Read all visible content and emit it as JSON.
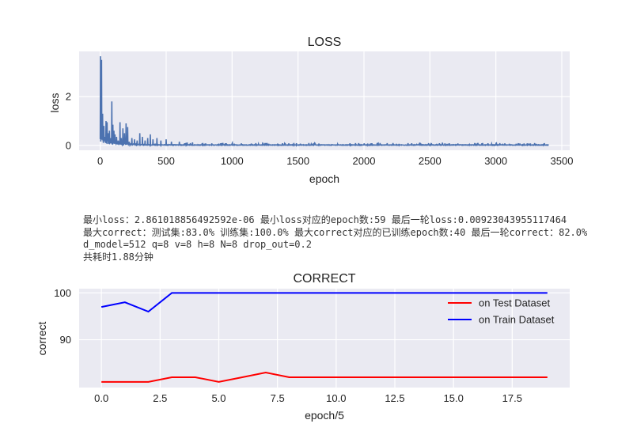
{
  "chart_data": [
    {
      "type": "line",
      "title": "LOSS",
      "xlabel": "epoch",
      "ylabel": "loss",
      "xlim": [
        -160,
        3560
      ],
      "ylim": [
        -0.2,
        3.85
      ],
      "xticks": [
        0,
        500,
        1000,
        1500,
        2000,
        2500,
        3000,
        3500
      ],
      "xtick_labels": [
        "0",
        "500",
        "1000",
        "1500",
        "2000",
        "2500",
        "3000",
        "3500"
      ],
      "yticks": [
        0,
        2
      ],
      "ytick_labels": [
        "0",
        "2"
      ],
      "grid": true,
      "color": "#4c72b0",
      "x_max": 3400,
      "peaks": [
        {
          "x": 2,
          "y": 3.65
        },
        {
          "x": 6,
          "y": 0.3
        },
        {
          "x": 10,
          "y": 3.5
        },
        {
          "x": 14,
          "y": 0.6
        },
        {
          "x": 18,
          "y": 1.3
        },
        {
          "x": 22,
          "y": 0.2
        },
        {
          "x": 28,
          "y": 0.8
        },
        {
          "x": 36,
          "y": 0.35
        },
        {
          "x": 44,
          "y": 1.0
        },
        {
          "x": 52,
          "y": 0.95
        },
        {
          "x": 60,
          "y": 0.5
        },
        {
          "x": 70,
          "y": 0.6
        },
        {
          "x": 80,
          "y": 0.3
        },
        {
          "x": 88,
          "y": 1.8
        },
        {
          "x": 96,
          "y": 0.85
        },
        {
          "x": 104,
          "y": 0.6
        },
        {
          "x": 112,
          "y": 0.45
        },
        {
          "x": 124,
          "y": 0.35
        },
        {
          "x": 136,
          "y": 0.2
        },
        {
          "x": 150,
          "y": 0.95
        },
        {
          "x": 160,
          "y": 0.3
        },
        {
          "x": 172,
          "y": 0.7
        },
        {
          "x": 184,
          "y": 0.5
        },
        {
          "x": 196,
          "y": 0.9
        },
        {
          "x": 208,
          "y": 0.75
        },
        {
          "x": 220,
          "y": 0.15
        },
        {
          "x": 240,
          "y": 0.3
        },
        {
          "x": 260,
          "y": 0.25
        },
        {
          "x": 280,
          "y": 0.2
        },
        {
          "x": 300,
          "y": 0.5
        },
        {
          "x": 320,
          "y": 0.35
        },
        {
          "x": 340,
          "y": 0.2
        },
        {
          "x": 360,
          "y": 0.3
        },
        {
          "x": 380,
          "y": 0.45
        },
        {
          "x": 400,
          "y": 0.25
        },
        {
          "x": 430,
          "y": 0.3
        },
        {
          "x": 460,
          "y": 0.2
        },
        {
          "x": 500,
          "y": 0.25
        },
        {
          "x": 540,
          "y": 0.15
        },
        {
          "x": 600,
          "y": 0.15
        },
        {
          "x": 650,
          "y": 0.1
        },
        {
          "x": 700,
          "y": 0.12
        },
        {
          "x": 800,
          "y": 0.08
        },
        {
          "x": 900,
          "y": 0.07
        },
        {
          "x": 1000,
          "y": 0.07
        },
        {
          "x": 1200,
          "y": 0.06
        },
        {
          "x": 1400,
          "y": 0.05
        },
        {
          "x": 1600,
          "y": 0.05
        },
        {
          "x": 1800,
          "y": 0.05
        },
        {
          "x": 2000,
          "y": 0.04
        },
        {
          "x": 2400,
          "y": 0.04
        },
        {
          "x": 2800,
          "y": 0.04
        },
        {
          "x": 3200,
          "y": 0.03
        },
        {
          "x": 3400,
          "y": 0.01
        }
      ]
    },
    {
      "type": "line",
      "title": "CORRECT",
      "xlabel": "epoch/5",
      "ylabel": "correct",
      "xlim": [
        -0.95,
        19.95
      ],
      "ylim": [
        79.8,
        100.9
      ],
      "xticks": [
        0,
        2.5,
        5,
        7.5,
        10,
        12.5,
        15,
        17.5
      ],
      "xtick_labels": [
        "0.0",
        "2.5",
        "5.0",
        "7.5",
        "10.0",
        "12.5",
        "15.0",
        "17.5"
      ],
      "yticks": [
        90,
        100
      ],
      "ytick_labels": [
        "90",
        "100"
      ],
      "grid": true,
      "legend": "upper-right",
      "x": [
        0,
        1,
        2,
        3,
        4,
        5,
        6,
        7,
        8,
        9,
        10,
        11,
        12,
        13,
        14,
        15,
        16,
        17,
        18,
        19
      ],
      "series": [
        {
          "name": "on Test Dataset",
          "color": "#ff0000",
          "values": [
            81,
            81,
            81,
            82,
            82,
            81,
            82,
            83,
            82,
            82,
            82,
            82,
            82,
            82,
            82,
            82,
            82,
            82,
            82,
            82
          ]
        },
        {
          "name": "on Train Dataset",
          "color": "#0000ff",
          "values": [
            97,
            98,
            96,
            100,
            100,
            100,
            100,
            100,
            100,
            100,
            100,
            100,
            100,
            100,
            100,
            100,
            100,
            100,
            100,
            100
          ]
        }
      ]
    }
  ],
  "info": {
    "line1": "最小loss：2.861018856492592e-06    最小loss对应的epoch数:59    最后一轮loss:0.00923043955117464",
    "line2": "最大correct：测试集:83.0% 训练集:100.0%    最大correct对应的已训练epoch数:40    最后一轮correct：82.0%",
    "line3": "d_model=512   q=8   v=8   h=8   N=8  drop_out=0.2",
    "line4": "共耗时1.88分钟"
  }
}
